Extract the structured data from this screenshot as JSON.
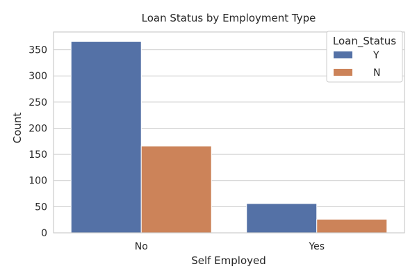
{
  "chart_data": {
    "type": "bar",
    "title": "Loan Status by Employment Type",
    "xlabel": "Self Employed",
    "ylabel": "Count",
    "categories": [
      "No",
      "Yes"
    ],
    "series": [
      {
        "name": "Y",
        "values": [
          366,
          56
        ],
        "color": "#5471a6"
      },
      {
        "name": "N",
        "values": [
          166,
          26
        ],
        "color": "#cc8359"
      }
    ],
    "ylim": [
      0,
      384
    ],
    "yticks": [
      0,
      50,
      100,
      150,
      200,
      250,
      300,
      350
    ],
    "grid": "horizontal",
    "legend": {
      "title": "Loan_Status",
      "placement": "top-right"
    }
  }
}
